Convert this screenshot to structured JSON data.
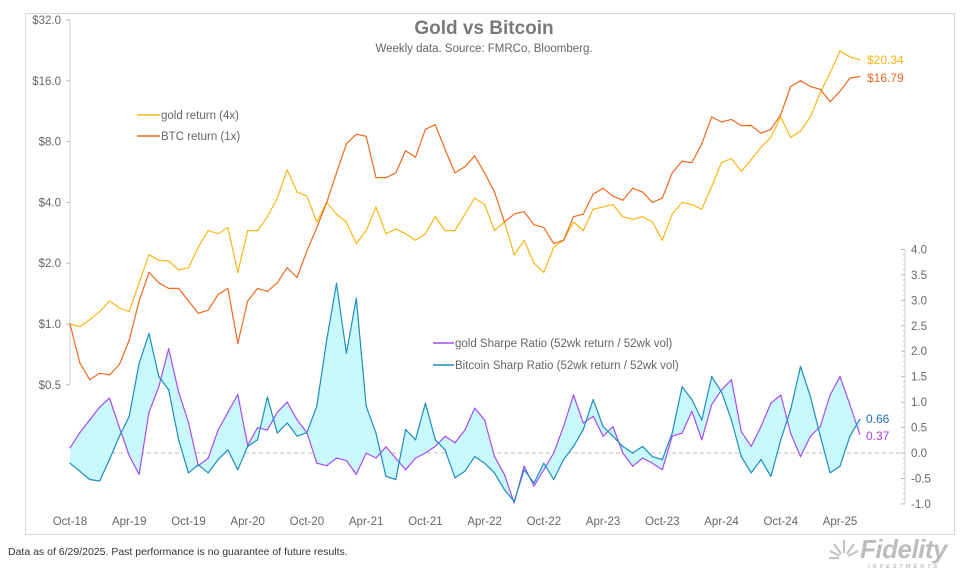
{
  "chart_data": {
    "type": "line",
    "title": "Gold vs Bitcoin",
    "subtitle": "Weekly data.  Source: FMRCo, Bloomberg.",
    "x_tick_labels": [
      "Oct-18",
      "Apr-19",
      "Oct-19",
      "Apr-20",
      "Oct-20",
      "Apr-21",
      "Oct-21",
      "Apr-22",
      "Oct-22",
      "Apr-23",
      "Oct-23",
      "Apr-24",
      "Oct-24",
      "Apr-25"
    ],
    "dates": [
      "2018-10",
      "2018-11",
      "2018-12",
      "2019-01",
      "2019-02",
      "2019-03",
      "2019-04",
      "2019-05",
      "2019-06",
      "2019-07",
      "2019-08",
      "2019-09",
      "2019-10",
      "2019-11",
      "2019-12",
      "2020-01",
      "2020-02",
      "2020-03",
      "2020-04",
      "2020-05",
      "2020-06",
      "2020-07",
      "2020-08",
      "2020-09",
      "2020-10",
      "2020-11",
      "2020-12",
      "2021-01",
      "2021-02",
      "2021-03",
      "2021-04",
      "2021-05",
      "2021-06",
      "2021-07",
      "2021-08",
      "2021-09",
      "2021-10",
      "2021-11",
      "2021-12",
      "2022-01",
      "2022-02",
      "2022-03",
      "2022-04",
      "2022-05",
      "2022-06",
      "2022-07",
      "2022-08",
      "2022-09",
      "2022-10",
      "2022-11",
      "2022-12",
      "2023-01",
      "2023-02",
      "2023-03",
      "2023-04",
      "2023-05",
      "2023-06",
      "2023-07",
      "2023-08",
      "2023-09",
      "2023-10",
      "2023-11",
      "2023-12",
      "2024-01",
      "2024-02",
      "2024-03",
      "2024-04",
      "2024-05",
      "2024-06",
      "2024-07",
      "2024-08",
      "2024-09",
      "2024-10",
      "2024-11",
      "2024-12",
      "2025-01",
      "2025-02",
      "2025-03",
      "2025-04",
      "2025-05",
      "2025-06"
    ],
    "left_axis": {
      "scale": "log2",
      "range": [
        0.5,
        32
      ],
      "tick_labels": [
        "$32.0",
        "$16.0",
        "$8.0",
        "$4.0",
        "$2.0",
        "$1.0",
        "$0.5"
      ],
      "tick_values": [
        32,
        16,
        8,
        4,
        2,
        1,
        0.5
      ]
    },
    "right_axis": {
      "scale": "linear",
      "range": [
        -1.0,
        4.0
      ],
      "tick_labels": [
        "4.0",
        "3.5",
        "3.0",
        "2.5",
        "2.0",
        "1.5",
        "1.0",
        "0.5",
        "0.0",
        "-0.5",
        "-1.0"
      ],
      "tick_values": [
        4,
        3.5,
        3,
        2.5,
        2,
        1.5,
        1,
        0.5,
        0,
        -0.5,
        -1
      ]
    },
    "grid": false,
    "series": [
      {
        "name": "gold return (4x)",
        "axis": "left",
        "color": "#f6b81c",
        "end_label": "$20.34",
        "values": [
          1.0,
          0.97,
          1.05,
          1.15,
          1.3,
          1.2,
          1.15,
          1.6,
          2.2,
          2.07,
          2.05,
          1.85,
          1.9,
          2.4,
          2.9,
          2.8,
          3.0,
          1.8,
          2.9,
          2.9,
          3.4,
          4.2,
          5.8,
          4.5,
          4.3,
          3.2,
          4.0,
          3.5,
          3.2,
          2.5,
          2.9,
          3.8,
          2.8,
          2.95,
          2.8,
          2.6,
          2.8,
          3.4,
          2.9,
          2.9,
          3.5,
          4.2,
          3.9,
          2.9,
          3.2,
          2.2,
          2.6,
          2.0,
          1.8,
          2.4,
          2.6,
          3.2,
          2.9,
          3.7,
          3.8,
          3.9,
          3.4,
          3.3,
          3.4,
          3.2,
          2.6,
          3.5,
          4.0,
          3.9,
          3.7,
          4.8,
          6.3,
          6.6,
          5.7,
          6.5,
          7.5,
          8.4,
          10.6,
          8.4,
          9.0,
          10.6,
          14.0,
          17.5,
          22.5,
          21.0,
          20.34
        ]
      },
      {
        "name": "BTC return (1x)",
        "axis": "left",
        "color": "#ee6b22",
        "end_label": "$16.79",
        "values": [
          1.0,
          0.64,
          0.53,
          0.57,
          0.56,
          0.63,
          0.83,
          1.3,
          1.8,
          1.6,
          1.5,
          1.5,
          1.3,
          1.13,
          1.17,
          1.4,
          1.5,
          0.8,
          1.3,
          1.5,
          1.45,
          1.6,
          1.9,
          1.7,
          2.3,
          3.0,
          4.0,
          5.6,
          7.8,
          8.7,
          8.5,
          5.3,
          5.3,
          5.6,
          7.2,
          6.7,
          9.2,
          9.7,
          7.3,
          5.6,
          6.0,
          6.8,
          5.6,
          4.5,
          3.2,
          3.5,
          3.6,
          3.1,
          3.0,
          2.5,
          2.6,
          3.4,
          3.5,
          4.4,
          4.7,
          4.3,
          4.1,
          4.7,
          4.5,
          4.0,
          4.2,
          5.6,
          6.4,
          6.3,
          7.8,
          10.6,
          10.0,
          10.3,
          9.6,
          9.6,
          8.8,
          9.2,
          10.9,
          15.0,
          16.0,
          15.0,
          14.5,
          12.6,
          14.2,
          16.5,
          16.79
        ]
      },
      {
        "name": "gold Sharpe Ratio (52wk return / 52wk vol)",
        "axis": "right",
        "color": "#a54df0",
        "end_label": "0.37",
        "end_label_color": "#b23ee0",
        "values": [
          0.1,
          0.4,
          0.65,
          0.9,
          1.08,
          0.5,
          -0.05,
          -0.42,
          0.8,
          1.3,
          2.05,
          1.2,
          0.6,
          -0.25,
          -0.1,
          0.45,
          0.8,
          1.15,
          0.15,
          0.5,
          0.45,
          0.8,
          1.0,
          0.65,
          0.4,
          -0.2,
          -0.25,
          -0.1,
          -0.15,
          -0.42,
          0.0,
          -0.1,
          0.12,
          -0.1,
          -0.33,
          -0.1,
          0.0,
          0.13,
          0.33,
          0.2,
          0.45,
          0.88,
          0.65,
          -0.07,
          -0.42,
          -0.98,
          -0.26,
          -0.65,
          -0.33,
          0.0,
          0.52,
          1.14,
          0.59,
          0.72,
          0.33,
          0.52,
          0.0,
          -0.26,
          -0.1,
          -0.2,
          -0.33,
          0.33,
          0.39,
          0.82,
          0.26,
          0.95,
          1.24,
          1.44,
          0.42,
          0.13,
          0.52,
          0.98,
          1.14,
          0.39,
          -0.07,
          0.33,
          0.52,
          1.14,
          1.5,
          0.95,
          0.37
        ]
      },
      {
        "name": "Bitcoin Sharp Ratio (52wk return / 52wk vol)",
        "axis": "right",
        "color": "#1e8dbd",
        "end_label": "0.66",
        "end_label_color": "#1f6fb0",
        "values": [
          -0.2,
          -0.36,
          -0.52,
          -0.55,
          -0.13,
          0.33,
          0.72,
          1.76,
          2.35,
          1.5,
          1.24,
          0.26,
          -0.39,
          -0.23,
          -0.39,
          -0.13,
          0.06,
          -0.33,
          0.13,
          0.26,
          1.1,
          0.39,
          0.59,
          0.33,
          0.4,
          0.92,
          2.22,
          3.33,
          1.96,
          3.04,
          0.92,
          0.39,
          -0.46,
          -0.52,
          0.46,
          0.26,
          0.98,
          0.26,
          0.06,
          -0.49,
          -0.36,
          -0.07,
          -0.2,
          -0.39,
          -0.72,
          -0.95,
          -0.33,
          -0.59,
          -0.2,
          -0.52,
          -0.13,
          0.13,
          0.46,
          1.05,
          0.52,
          0.33,
          0.13,
          0.0,
          0.13,
          -0.07,
          -0.13,
          0.39,
          1.3,
          1.05,
          0.65,
          1.5,
          1.2,
          0.65,
          -0.07,
          -0.39,
          -0.13,
          -0.46,
          0.26,
          0.85,
          1.7,
          1.11,
          0.33,
          -0.39,
          -0.26,
          0.33,
          0.66
        ]
      }
    ],
    "fill_between_sharpe_color": "#c9f9fc",
    "zero_line": "dashed",
    "legends": [
      {
        "placement": "upper-left",
        "entries": [
          "gold return (4x)",
          "BTC return (1x)"
        ]
      },
      {
        "placement": "center",
        "entries": [
          "gold Sharpe Ratio (52wk return / 52wk vol)",
          "Bitcoin Sharp Ratio (52wk return / 52wk vol)"
        ]
      }
    ]
  },
  "footer": {
    "disclaimer": "Data as of 6/29/2025. Past performance is no guarantee of future results."
  },
  "logo": {
    "text": "Fidelity",
    "subtext": "INVESTMENTS",
    "icon": "fidelity-sunburst-icon"
  }
}
